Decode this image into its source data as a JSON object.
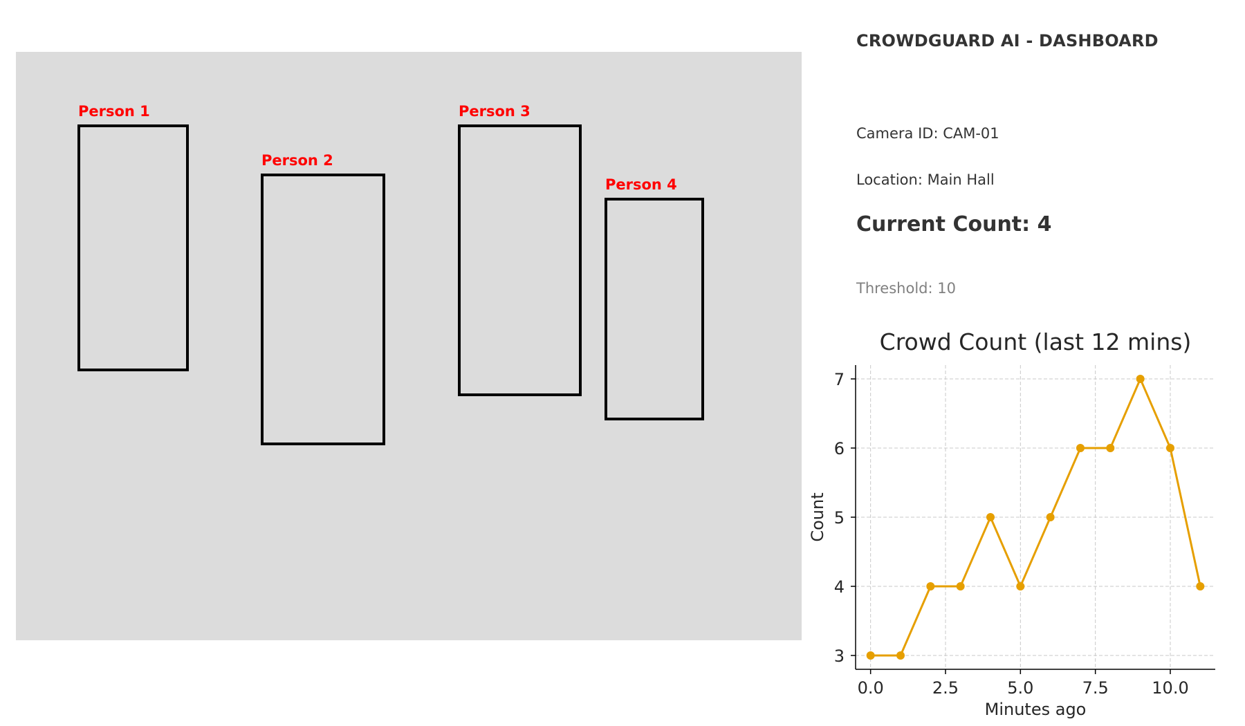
{
  "camera_feed": {
    "detections": [
      {
        "label": "Person 1"
      },
      {
        "label": "Person 2"
      },
      {
        "label": "Person 3"
      },
      {
        "label": "Person 4"
      }
    ],
    "label_color": "#ff0000",
    "box_color": "#000000",
    "background_color": "#dcdcdc"
  },
  "dashboard": {
    "title": "CROWDGUARD AI - DASHBOARD",
    "camera_id": "Camera ID: CAM-01",
    "location": "Location: Main Hall",
    "current_count": "Current Count: 4",
    "threshold": "Threshold: 10"
  },
  "chart_data": {
    "type": "line",
    "title": "Crowd Count (last 12 mins)",
    "xlabel": "Minutes ago",
    "ylabel": "Count",
    "x": [
      0,
      1,
      2,
      3,
      4,
      5,
      6,
      7,
      8,
      9,
      10,
      11
    ],
    "series": [
      {
        "values": [
          3,
          3,
          4,
          4,
          5,
          4,
          5,
          6,
          6,
          7,
          6,
          4
        ]
      }
    ],
    "xlim": [
      -0.5,
      11.5
    ],
    "ylim": [
      2.8,
      7.2
    ],
    "xticks": [
      0.0,
      2.5,
      5.0,
      7.5,
      10.0
    ],
    "xtick_labels": [
      "0.0",
      "2.5",
      "5.0",
      "7.5",
      "10.0"
    ],
    "yticks": [
      3,
      4,
      5,
      6,
      7
    ],
    "ytick_labels": [
      "3",
      "4",
      "5",
      "6",
      "7"
    ],
    "grid": true,
    "line_color": "#e69f00",
    "marker": "circle"
  }
}
